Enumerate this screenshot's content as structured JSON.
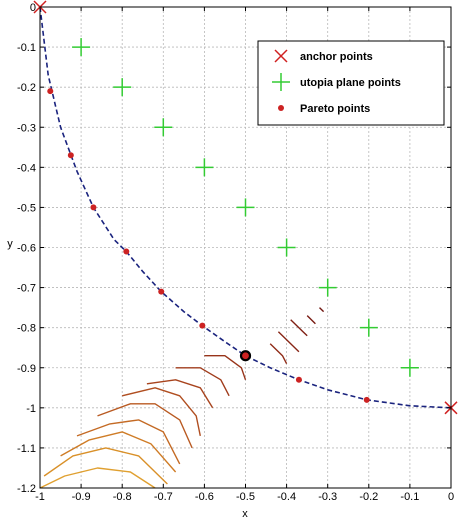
{
  "chart_data": {
    "type": "scatter",
    "title": "",
    "xlabel": "x",
    "ylabel": "y",
    "xlim": [
      -1,
      0
    ],
    "ylim": [
      -1.2,
      0
    ],
    "grid": true,
    "legend_position": "top-right",
    "x_ticks": [
      -1,
      -0.9,
      -0.8,
      -0.7,
      -0.6,
      -0.5,
      -0.4,
      -0.3,
      -0.2,
      -0.1,
      0
    ],
    "x_tick_labels": [
      "-1",
      "-0.9",
      "-0.8",
      "-0.7",
      "-0.6",
      "-0.5",
      "-0.4",
      "-0.3",
      "-0.2",
      "-0.1",
      "0"
    ],
    "y_ticks": [
      0,
      -0.1,
      -0.2,
      -0.3,
      -0.4,
      -0.5,
      -0.6,
      -0.7,
      -0.8,
      -0.9,
      -1,
      -1.1,
      -1.2
    ],
    "y_tick_labels": [
      "0",
      "-0.1",
      "-0.2",
      "-0.3",
      "-0.4",
      "-0.5",
      "-0.6",
      "-0.7",
      "-0.8",
      "-0.9",
      "-1",
      "-1.1",
      "-1.2"
    ],
    "series": [
      {
        "name": "anchor points",
        "marker": "x",
        "color": "#d02020",
        "points": [
          [
            -1,
            0
          ],
          [
            0,
            -1
          ]
        ]
      },
      {
        "name": "utopia plane points",
        "marker": "+",
        "color": "#33cc33",
        "points": [
          [
            -0.9,
            -0.1
          ],
          [
            -0.8,
            -0.2
          ],
          [
            -0.7,
            -0.3
          ],
          [
            -0.6,
            -0.4
          ],
          [
            -0.5,
            -0.5
          ],
          [
            -0.4,
            -0.6
          ],
          [
            -0.3,
            -0.7
          ],
          [
            -0.2,
            -0.8
          ],
          [
            -0.1,
            -0.9
          ]
        ]
      },
      {
        "name": "Pareto points",
        "marker": "dot",
        "color": "#cc2222",
        "points": [
          [
            -0.975,
            -0.21
          ],
          [
            -0.925,
            -0.37
          ],
          [
            -0.87,
            -0.5
          ],
          [
            -0.79,
            -0.61
          ],
          [
            -0.705,
            -0.71
          ],
          [
            -0.605,
            -0.795
          ],
          [
            -0.5,
            -0.87
          ],
          [
            -0.37,
            -0.93
          ],
          [
            -0.205,
            -0.98
          ]
        ]
      }
    ],
    "pareto_curve": {
      "style": "dashed",
      "color": "#1a237e",
      "points": [
        [
          -1,
          0
        ],
        [
          -0.98,
          -0.17
        ],
        [
          -0.95,
          -0.3
        ],
        [
          -0.91,
          -0.41
        ],
        [
          -0.87,
          -0.5
        ],
        [
          -0.82,
          -0.58
        ],
        [
          -0.79,
          -0.61
        ],
        [
          -0.75,
          -0.66
        ],
        [
          -0.705,
          -0.71
        ],
        [
          -0.65,
          -0.76
        ],
        [
          -0.605,
          -0.795
        ],
        [
          -0.55,
          -0.835
        ],
        [
          -0.5,
          -0.87
        ],
        [
          -0.44,
          -0.9
        ],
        [
          -0.37,
          -0.93
        ],
        [
          -0.3,
          -0.955
        ],
        [
          -0.205,
          -0.98
        ],
        [
          -0.1,
          -0.995
        ],
        [
          0,
          -1
        ]
      ]
    },
    "highlight_point": {
      "point": [
        -0.5,
        -0.87
      ],
      "color": "#000000"
    },
    "contour_arcs": [
      {
        "color": "#e0a030",
        "points": [
          [
            -1,
            -1.2
          ],
          [
            -0.94,
            -1.17
          ],
          [
            -0.86,
            -1.15
          ],
          [
            -0.78,
            -1.16
          ],
          [
            -0.72,
            -1.2
          ]
        ]
      },
      {
        "color": "#d99028",
        "points": [
          [
            -0.99,
            -1.17
          ],
          [
            -0.92,
            -1.12
          ],
          [
            -0.84,
            -1.1
          ],
          [
            -0.76,
            -1.12
          ],
          [
            -0.69,
            -1.19
          ]
        ]
      },
      {
        "color": "#cf7c26",
        "points": [
          [
            -0.95,
            -1.12
          ],
          [
            -0.88,
            -1.08
          ],
          [
            -0.8,
            -1.06
          ],
          [
            -0.73,
            -1.09
          ],
          [
            -0.67,
            -1.16
          ]
        ]
      },
      {
        "color": "#c46a24",
        "points": [
          [
            -0.91,
            -1.07
          ],
          [
            -0.83,
            -1.04
          ],
          [
            -0.76,
            -1.03
          ],
          [
            -0.7,
            -1.06
          ],
          [
            -0.66,
            -1.14
          ]
        ]
      },
      {
        "color": "#b95a22",
        "points": [
          [
            -0.86,
            -1.02
          ],
          [
            -0.78,
            -0.99
          ],
          [
            -0.72,
            -0.99
          ],
          [
            -0.66,
            -1.03
          ],
          [
            -0.63,
            -1.1
          ]
        ]
      },
      {
        "color": "#b04e20",
        "points": [
          [
            -0.8,
            -0.97
          ],
          [
            -0.72,
            -0.95
          ],
          [
            -0.66,
            -0.97
          ],
          [
            -0.62,
            -1.02
          ],
          [
            -0.61,
            -1.07
          ]
        ]
      },
      {
        "color": "#a8441e",
        "points": [
          [
            -0.74,
            -0.94
          ],
          [
            -0.67,
            -0.93
          ],
          [
            -0.61,
            -0.95
          ],
          [
            -0.58,
            -1.0
          ]
        ]
      },
      {
        "color": "#a03c1c",
        "points": [
          [
            -0.67,
            -0.9
          ],
          [
            -0.61,
            -0.9
          ],
          [
            -0.56,
            -0.93
          ],
          [
            -0.54,
            -0.97
          ]
        ]
      },
      {
        "color": "#98341a",
        "points": [
          [
            -0.6,
            -0.87
          ],
          [
            -0.55,
            -0.87
          ],
          [
            -0.51,
            -0.9
          ],
          [
            -0.5,
            -0.93
          ]
        ]
      },
      {
        "color": "#902c18",
        "points": [
          [
            -0.44,
            -0.84
          ],
          [
            -0.41,
            -0.87
          ],
          [
            -0.4,
            -0.89
          ]
        ]
      },
      {
        "color": "#882616",
        "points": [
          [
            -0.42,
            -0.81
          ],
          [
            -0.39,
            -0.84
          ],
          [
            -0.37,
            -0.86
          ]
        ]
      },
      {
        "color": "#802014",
        "points": [
          [
            -0.39,
            -0.78
          ],
          [
            -0.36,
            -0.81
          ],
          [
            -0.35,
            -0.82
          ]
        ]
      },
      {
        "color": "#781a12",
        "points": [
          [
            -0.35,
            -0.77
          ],
          [
            -0.33,
            -0.79
          ]
        ]
      },
      {
        "color": "#701610",
        "points": [
          [
            -0.32,
            -0.75
          ],
          [
            -0.31,
            -0.76
          ]
        ]
      }
    ]
  }
}
